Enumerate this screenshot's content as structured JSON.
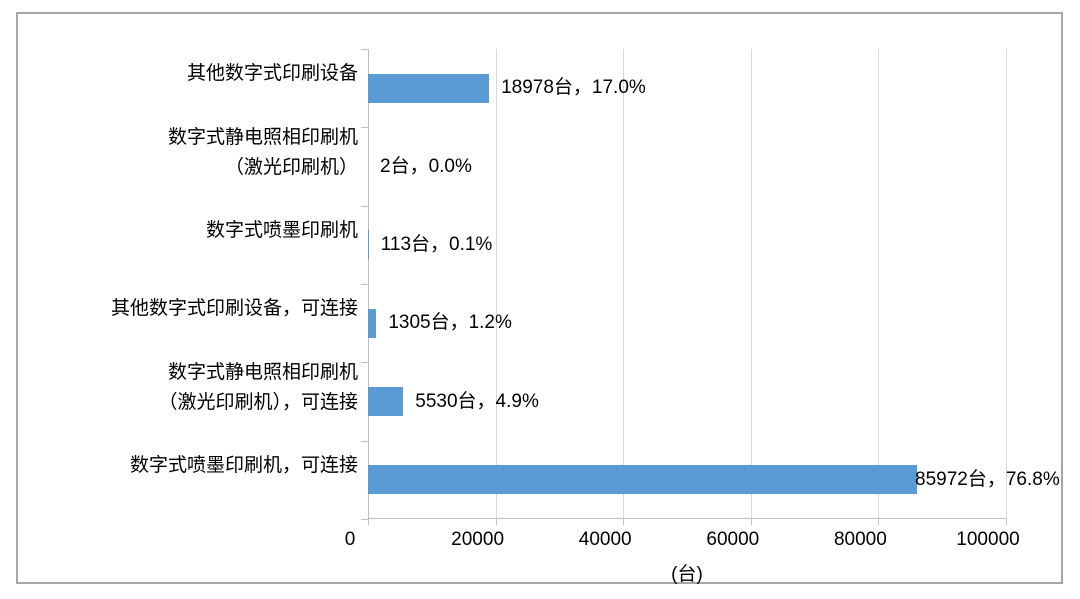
{
  "chart_data": {
    "type": "bar",
    "orientation": "horizontal",
    "title": "",
    "categories": [
      "其他数字式印刷设备",
      "数字式静电照相印刷机（激光印刷机）",
      "数字式喷墨印刷机",
      "其他数字式印刷设备，可连接",
      "数字式静电照相印刷机（激光印刷机），可连接",
      "数字式喷墨印刷机，可连接"
    ],
    "category_lines": [
      [
        "其他数字式印刷设备"
      ],
      [
        "数字式静电照相印刷机",
        "（激光印刷机）"
      ],
      [
        "数字式喷墨印刷机"
      ],
      [
        "其他数字式印刷设备，可连接"
      ],
      [
        "数字式静电照相印刷机",
        "（激光印刷机），可连接"
      ],
      [
        "数字式喷墨印刷机，可连接"
      ]
    ],
    "values": [
      18978,
      2,
      113,
      1305,
      5530,
      85972
    ],
    "unit": "台",
    "percent_labels": [
      "17.0%",
      "0.0%",
      "0.1%",
      "1.2%",
      "4.9%",
      "76.8%"
    ],
    "data_labels": [
      "18978台，17.0%",
      "2台，0.0%",
      "113台，0.1%",
      "1305台，1.2%",
      "5530台，4.9%",
      "85972台，76.8%"
    ],
    "xlabel": "(台)",
    "xlim": [
      0,
      100000
    ],
    "xticks": [
      0,
      20000,
      40000,
      60000,
      80000,
      100000
    ],
    "xtick_labels": [
      "0",
      "20000",
      "40000",
      "60000",
      "80000",
      "100000"
    ],
    "grid": true,
    "legend": false,
    "colors": {
      "bar": "#5B9BD5",
      "gridline": "#D9D9D9",
      "axis": "#BFBFBF",
      "text": "#000000",
      "border": "#A6A6A6"
    }
  }
}
